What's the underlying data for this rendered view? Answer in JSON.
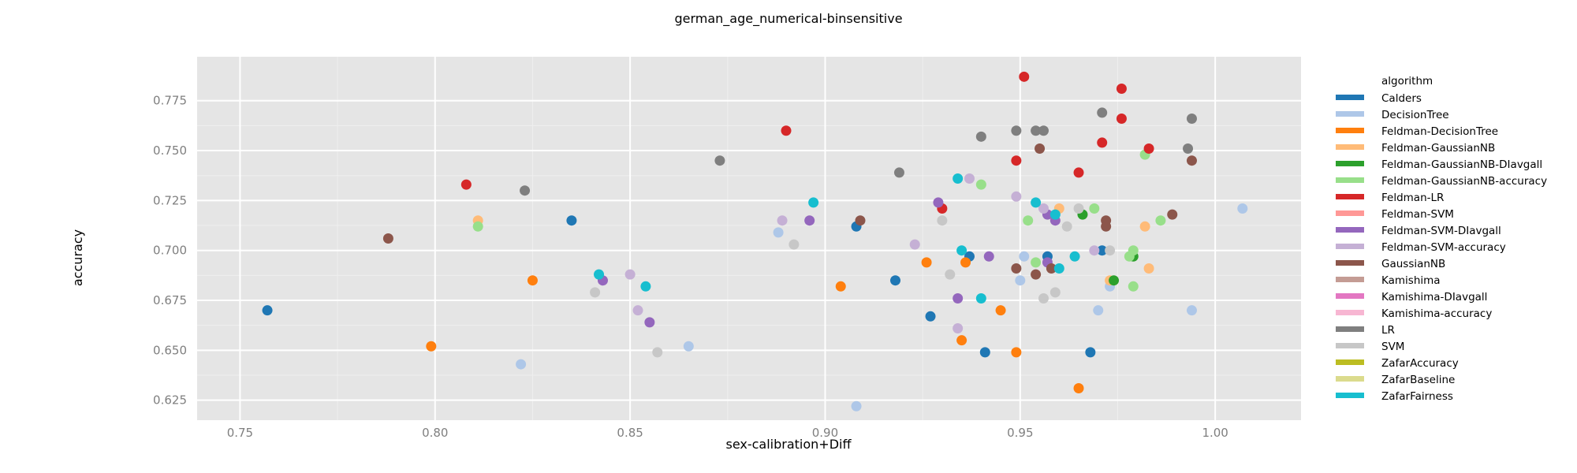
{
  "chart_data": {
    "type": "scatter",
    "title": "german_age_numerical-binsensitive",
    "xlabel": "sex-calibration+Diff",
    "ylabel": "accuracy",
    "xlim": [
      0.739,
      1.022
    ],
    "ylim": [
      0.615,
      0.797
    ],
    "xticks": [
      0.75,
      0.8,
      0.85,
      0.9,
      0.95,
      1.0
    ],
    "xtick_labels": [
      "0.75",
      "0.80",
      "0.85",
      "0.90",
      "0.95",
      "1.00"
    ],
    "yticks": [
      0.625,
      0.65,
      0.675,
      0.7,
      0.725,
      0.75,
      0.775
    ],
    "ytick_labels": [
      "0.625",
      "0.650",
      "0.675",
      "0.700",
      "0.725",
      "0.750",
      "0.775"
    ],
    "grid": true,
    "legend_position": "right",
    "legend_title": "algorithm",
    "series": [
      {
        "name": "Calders",
        "color": "#1f77b4",
        "points": [
          [
            0.757,
            0.67
          ],
          [
            0.835,
            0.715
          ],
          [
            0.908,
            0.712
          ],
          [
            0.918,
            0.685
          ],
          [
            0.927,
            0.667
          ],
          [
            0.937,
            0.697
          ],
          [
            0.941,
            0.649
          ],
          [
            0.957,
            0.697
          ],
          [
            0.968,
            0.649
          ],
          [
            0.971,
            0.7
          ]
        ]
      },
      {
        "name": "DecisionTree",
        "color": "#aec7e8",
        "points": [
          [
            0.822,
            0.643
          ],
          [
            0.865,
            0.652
          ],
          [
            0.888,
            0.709
          ],
          [
            0.908,
            0.622
          ],
          [
            0.95,
            0.685
          ],
          [
            0.951,
            0.697
          ],
          [
            0.97,
            0.67
          ],
          [
            0.973,
            0.682
          ],
          [
            0.994,
            0.67
          ],
          [
            1.007,
            0.721
          ]
        ]
      },
      {
        "name": "Feldman-DecisionTree",
        "color": "#ff7f0e",
        "points": [
          [
            0.799,
            0.652
          ],
          [
            0.825,
            0.685
          ],
          [
            0.904,
            0.682
          ],
          [
            0.926,
            0.694
          ],
          [
            0.935,
            0.655
          ],
          [
            0.936,
            0.694
          ],
          [
            0.945,
            0.67
          ],
          [
            0.949,
            0.649
          ],
          [
            0.965,
            0.631
          ]
        ]
      },
      {
        "name": "Feldman-GaussianNB",
        "color": "#ffbb78",
        "points": [
          [
            0.811,
            0.715
          ],
          [
            0.96,
            0.721
          ],
          [
            0.973,
            0.685
          ],
          [
            0.982,
            0.712
          ],
          [
            0.983,
            0.691
          ]
        ]
      },
      {
        "name": "Feldman-GaussianNB-DIavgall",
        "color": "#2ca02c",
        "points": [
          [
            0.966,
            0.718
          ],
          [
            0.974,
            0.685
          ],
          [
            0.979,
            0.697
          ]
        ]
      },
      {
        "name": "Feldman-GaussianNB-accuracy",
        "color": "#98df8a",
        "points": [
          [
            0.811,
            0.712
          ],
          [
            0.94,
            0.733
          ],
          [
            0.952,
            0.715
          ],
          [
            0.954,
            0.694
          ],
          [
            0.969,
            0.721
          ],
          [
            0.978,
            0.697
          ],
          [
            0.979,
            0.7
          ],
          [
            0.979,
            0.682
          ],
          [
            0.982,
            0.748
          ],
          [
            0.986,
            0.715
          ]
        ]
      },
      {
        "name": "Feldman-LR",
        "color": "#d62728",
        "points": [
          [
            0.808,
            0.733
          ],
          [
            0.89,
            0.76
          ],
          [
            0.93,
            0.721
          ],
          [
            0.949,
            0.745
          ],
          [
            0.951,
            0.787
          ],
          [
            0.965,
            0.739
          ],
          [
            0.971,
            0.754
          ],
          [
            0.976,
            0.781
          ],
          [
            0.976,
            0.766
          ],
          [
            0.983,
            0.751
          ]
        ]
      },
      {
        "name": "Feldman-SVM",
        "color": "#ff9896",
        "points": []
      },
      {
        "name": "Feldman-SVM-DIavgall",
        "color": "#9467bd",
        "points": [
          [
            0.843,
            0.685
          ],
          [
            0.855,
            0.664
          ],
          [
            0.896,
            0.715
          ],
          [
            0.929,
            0.724
          ],
          [
            0.934,
            0.676
          ],
          [
            0.942,
            0.697
          ],
          [
            0.957,
            0.718
          ],
          [
            0.957,
            0.694
          ],
          [
            0.959,
            0.715
          ]
        ]
      },
      {
        "name": "Feldman-SVM-accuracy",
        "color": "#c5b0d5",
        "points": [
          [
            0.85,
            0.688
          ],
          [
            0.852,
            0.67
          ],
          [
            0.889,
            0.715
          ],
          [
            0.923,
            0.703
          ],
          [
            0.934,
            0.661
          ],
          [
            0.937,
            0.736
          ],
          [
            0.949,
            0.727
          ],
          [
            0.956,
            0.721
          ],
          [
            0.969,
            0.7
          ]
        ]
      },
      {
        "name": "GaussianNB",
        "color": "#8c564b",
        "points": [
          [
            0.788,
            0.706
          ],
          [
            0.909,
            0.715
          ],
          [
            0.949,
            0.691
          ],
          [
            0.954,
            0.688
          ],
          [
            0.955,
            0.751
          ],
          [
            0.958,
            0.691
          ],
          [
            0.972,
            0.715
          ],
          [
            0.972,
            0.712
          ],
          [
            0.989,
            0.718
          ],
          [
            0.994,
            0.745
          ]
        ]
      },
      {
        "name": "Kamishima",
        "color": "#c49c94",
        "points": []
      },
      {
        "name": "Kamishima-DIavgall",
        "color": "#e377c2",
        "points": []
      },
      {
        "name": "Kamishima-accuracy",
        "color": "#f7b6d2",
        "points": []
      },
      {
        "name": "LR",
        "color": "#7f7f7f",
        "points": [
          [
            0.823,
            0.73
          ],
          [
            0.873,
            0.745
          ],
          [
            0.919,
            0.739
          ],
          [
            0.94,
            0.757
          ],
          [
            0.949,
            0.76
          ],
          [
            0.954,
            0.76
          ],
          [
            0.956,
            0.76
          ],
          [
            0.971,
            0.769
          ],
          [
            0.993,
            0.751
          ],
          [
            0.994,
            0.766
          ]
        ]
      },
      {
        "name": "SVM",
        "color": "#c7c7c7",
        "points": [
          [
            0.841,
            0.679
          ],
          [
            0.857,
            0.649
          ],
          [
            0.892,
            0.703
          ],
          [
            0.93,
            0.715
          ],
          [
            0.932,
            0.688
          ],
          [
            0.956,
            0.676
          ],
          [
            0.959,
            0.679
          ],
          [
            0.962,
            0.712
          ],
          [
            0.965,
            0.721
          ],
          [
            0.973,
            0.7
          ]
        ]
      },
      {
        "name": "ZafarAccuracy",
        "color": "#bcbd22",
        "points": []
      },
      {
        "name": "ZafarBaseline",
        "color": "#dbdb8d",
        "points": []
      },
      {
        "name": "ZafarFairness",
        "color": "#17becf",
        "points": [
          [
            0.842,
            0.688
          ],
          [
            0.854,
            0.682
          ],
          [
            0.897,
            0.724
          ],
          [
            0.934,
            0.736
          ],
          [
            0.935,
            0.7
          ],
          [
            0.94,
            0.676
          ],
          [
            0.954,
            0.724
          ],
          [
            0.959,
            0.718
          ],
          [
            0.96,
            0.691
          ],
          [
            0.964,
            0.697
          ]
        ]
      }
    ]
  }
}
